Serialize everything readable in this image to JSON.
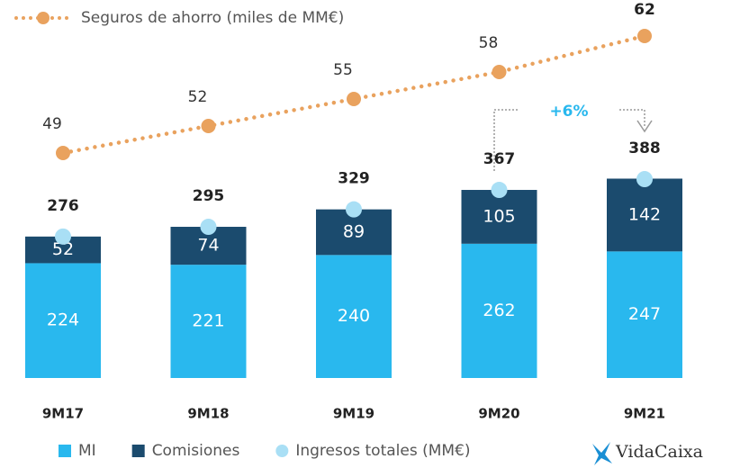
{
  "chart_data": {
    "type": "bar",
    "stacked": true,
    "categories": [
      "9M17",
      "9M18",
      "9M19",
      "9M20",
      "9M21"
    ],
    "series": [
      {
        "name": "MI",
        "color": "#29b8ee",
        "values": [
          224,
          221,
          240,
          262,
          247
        ]
      },
      {
        "name": "Comisiones",
        "color": "#1b4b6e",
        "values": [
          52,
          74,
          89,
          105,
          142
        ]
      },
      {
        "name": "Ingresos totales (MM€)",
        "color": "#a9dff5",
        "type": "dot",
        "values": [
          276,
          295,
          329,
          367,
          388
        ]
      },
      {
        "name": "Seguros de ahorro (miles de MM€)",
        "color": "#e9a25e",
        "type": "line",
        "axis": "y2",
        "values": [
          49,
          52,
          55,
          58,
          62
        ]
      }
    ],
    "ylim": [
      0,
      720
    ],
    "y2lim": [
      24,
      65
    ],
    "annotation": {
      "text": "+6%",
      "color": "#29b8ee"
    },
    "logo": "VidaCaixa"
  }
}
